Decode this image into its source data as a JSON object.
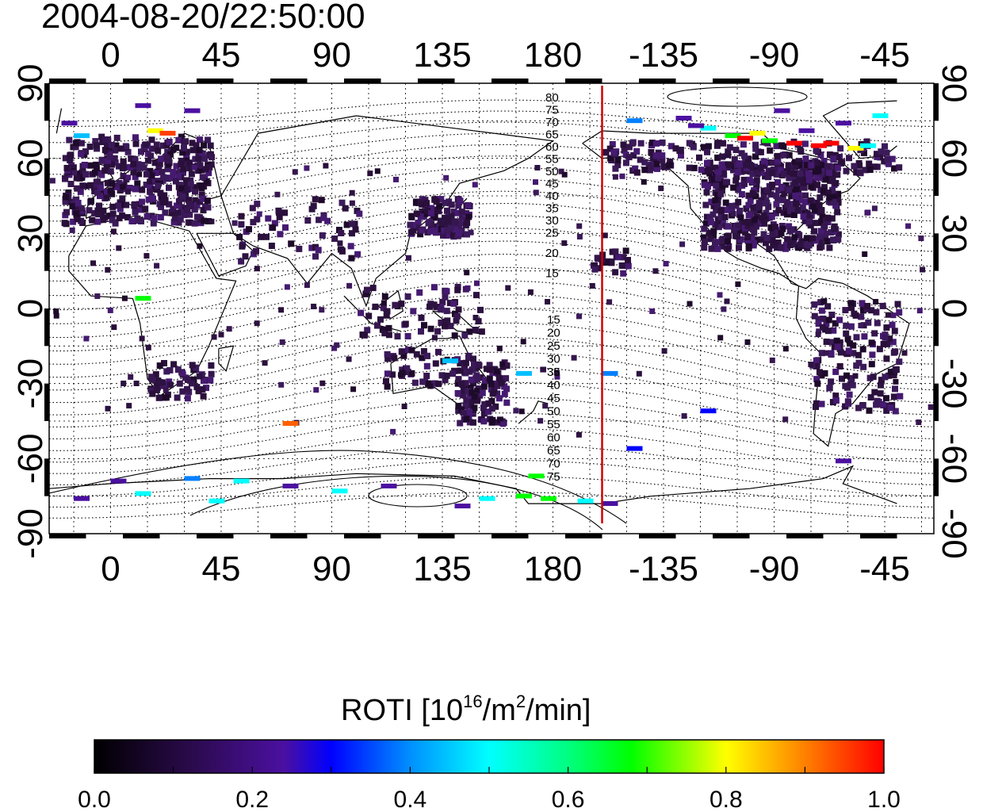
{
  "title": "2004-08-20/22:50:00",
  "map": {
    "longitude_ticks": [
      "0",
      "45",
      "90",
      "135",
      "180",
      "-135",
      "-90",
      "-45"
    ],
    "latitude_ticks": [
      "90",
      "60",
      "30",
      "0",
      "-30",
      "-60",
      "-90"
    ],
    "meridian_marker_longitude": -160,
    "meridian_marker_color": "#d00000",
    "contour_labels_north": [
      "80",
      "75",
      "70",
      "65",
      "60",
      "55",
      "50",
      "45",
      "40",
      "35",
      "30",
      "25",
      "20",
      "15"
    ],
    "contour_labels_south": [
      "15",
      "20",
      "25",
      "30",
      "35",
      "40",
      "45",
      "50",
      "55",
      "60",
      "65",
      "70",
      "75"
    ]
  },
  "colorbar": {
    "label_prefix": "ROTI  [10",
    "label_exp1": "16",
    "label_mid": "/m",
    "label_exp2": "2",
    "label_suffix": "/min]",
    "ticks": [
      "0.0",
      "0.2",
      "0.4",
      "0.6",
      "0.8",
      "1.0"
    ],
    "range": [
      0.0,
      1.0
    ]
  }
}
